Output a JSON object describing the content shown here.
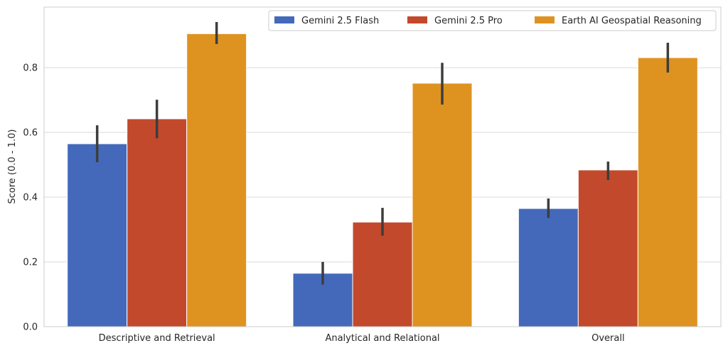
{
  "chart_data": {
    "type": "bar",
    "title": "",
    "xlabel": "",
    "ylabel": "Score (0.0 - 1.0)",
    "ylim": [
      0,
      0.987
    ],
    "yticks": [
      "0.0",
      "0.2",
      "0.4",
      "0.6",
      "0.8"
    ],
    "ytick_values": [
      0,
      0.2,
      0.4,
      0.6,
      0.8
    ],
    "grid": true,
    "legend_position": "top-right",
    "categories": [
      "Descriptive and Retrieval",
      "Analytical and Relational",
      "Overall"
    ],
    "series": [
      {
        "name": "Gemini 2.5 Flash",
        "color": "#4469BA",
        "values": [
          0.565,
          0.165,
          0.365
        ],
        "err_low": [
          0.508,
          0.13,
          0.336
        ],
        "err_high": [
          0.622,
          0.2,
          0.396
        ]
      },
      {
        "name": "Gemini 2.5 Pro",
        "color": "#C2492B",
        "values": [
          0.642,
          0.323,
          0.484
        ],
        "err_low": [
          0.582,
          0.281,
          0.453
        ],
        "err_high": [
          0.701,
          0.367,
          0.51
        ]
      },
      {
        "name": "Earth AI Geospatial Reasoning",
        "color": "#DE9320",
        "values": [
          0.905,
          0.752,
          0.831
        ],
        "err_low": [
          0.873,
          0.686,
          0.785
        ],
        "err_high": [
          0.941,
          0.815,
          0.877
        ]
      }
    ]
  }
}
